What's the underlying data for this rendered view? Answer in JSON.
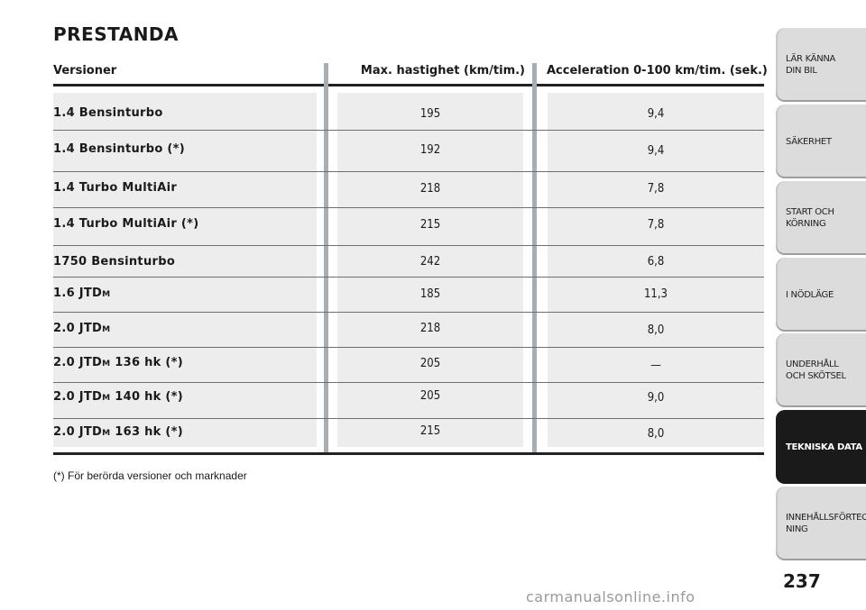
{
  "section_title": "PRESTANDA",
  "headers": {
    "versions": "Versioner",
    "max_speed": "Max. hastighet (km/tim.)",
    "acceleration": "Acceleration 0-100 km/tim. (sek.)"
  },
  "rows": [
    {
      "version": "1.4 Bensinturbo",
      "suffix": "",
      "speed": "195",
      "accel": "9,4"
    },
    {
      "version": "1.4 Bensinturbo (*)",
      "suffix": "",
      "speed": "192",
      "accel": "9,4"
    },
    {
      "version": "1.4 Turbo MultiAir",
      "suffix": "",
      "speed": "218",
      "accel": "7,8"
    },
    {
      "version": "1.4 Turbo MultiAir (*)",
      "suffix": "",
      "speed": "215",
      "accel": "7,8"
    },
    {
      "version": "1750 Bensinturbo",
      "suffix": "",
      "speed": "242",
      "accel": "6,8"
    },
    {
      "version": "1.6 JTD",
      "sc": "M",
      "suffix": "",
      "speed": "185",
      "accel": "11,3"
    },
    {
      "version": "2.0 JTD",
      "sc": "M",
      "suffix": "",
      "speed": "218",
      "accel": "8,0"
    },
    {
      "version": "2.0 JTD",
      "sc": "M",
      "suffix": " 136 hk (*)",
      "speed": "205",
      "accel": "—"
    },
    {
      "version": "2.0 JTD",
      "sc": "M",
      "suffix": " 140 hk (*)",
      "speed": "205",
      "accel": "9,0"
    },
    {
      "version": "2.0 JTD",
      "sc": "M",
      "suffix": " 163 hk (*)",
      "speed": "215",
      "accel": "8,0"
    }
  ],
  "footnote": "(*) För berörda versioner och marknader",
  "tabs": [
    {
      "label": "LÄR KÄNNA\nDIN BIL",
      "active": false
    },
    {
      "label": "SÄKERHET",
      "active": false
    },
    {
      "label": "START OCH\nKÖRNING",
      "active": false
    },
    {
      "label": "I NÖDLÄGE",
      "active": false
    },
    {
      "label": "UNDERHÅLL\nOCH SKÖTSEL",
      "active": false
    },
    {
      "label": "TEKNISKA DATA",
      "active": true
    },
    {
      "label": "INNEHÅLLSFÖRTECK-\nNING",
      "active": false
    }
  ],
  "page_number": "237",
  "watermark": "carmanualsonline.info"
}
